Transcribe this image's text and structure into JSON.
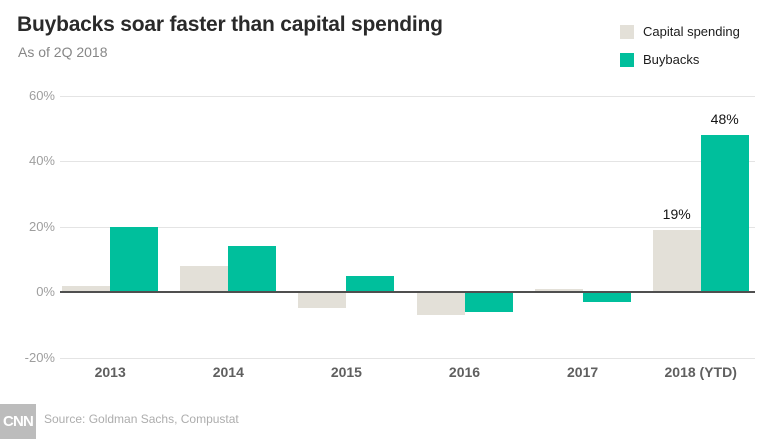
{
  "header": {
    "title": "Buybacks soar faster than capital spending",
    "subtitle": "As of 2Q 2018"
  },
  "legend": {
    "items": [
      {
        "label": "Capital spending",
        "color": "#e3e0d8"
      },
      {
        "label": "Buybacks",
        "color": "#00bf9c"
      }
    ]
  },
  "chart_data": {
    "type": "bar",
    "title": "Buybacks soar faster than capital spending",
    "subtitle": "As of 2Q 2018",
    "categories": [
      "2013",
      "2014",
      "2015",
      "2016",
      "2017",
      "2018 (YTD)"
    ],
    "series": [
      {
        "name": "Capital spending",
        "color": "#e3e0d8",
        "values": [
          2,
          8,
          -5,
          -7,
          1,
          19
        ],
        "value_labels": [
          "",
          "",
          "",
          "",
          "",
          "19%"
        ]
      },
      {
        "name": "Buybacks",
        "color": "#00bf9c",
        "values": [
          20,
          14,
          5,
          -6,
          -3,
          48
        ],
        "value_labels": [
          "",
          "",
          "",
          "",
          "",
          "48%"
        ]
      }
    ],
    "xlabel": "",
    "ylabel": "",
    "ylim": [
      -20,
      60
    ],
    "yticks": [
      60,
      40,
      20,
      0,
      -20
    ],
    "ytick_labels": [
      "60%",
      "40%",
      "20%",
      "0%",
      "-20%"
    ],
    "grid": true,
    "legend_position": "top-right"
  },
  "footer": {
    "logo_text": "CNN",
    "source": "Source: Goldman Sachs, Compustat"
  }
}
